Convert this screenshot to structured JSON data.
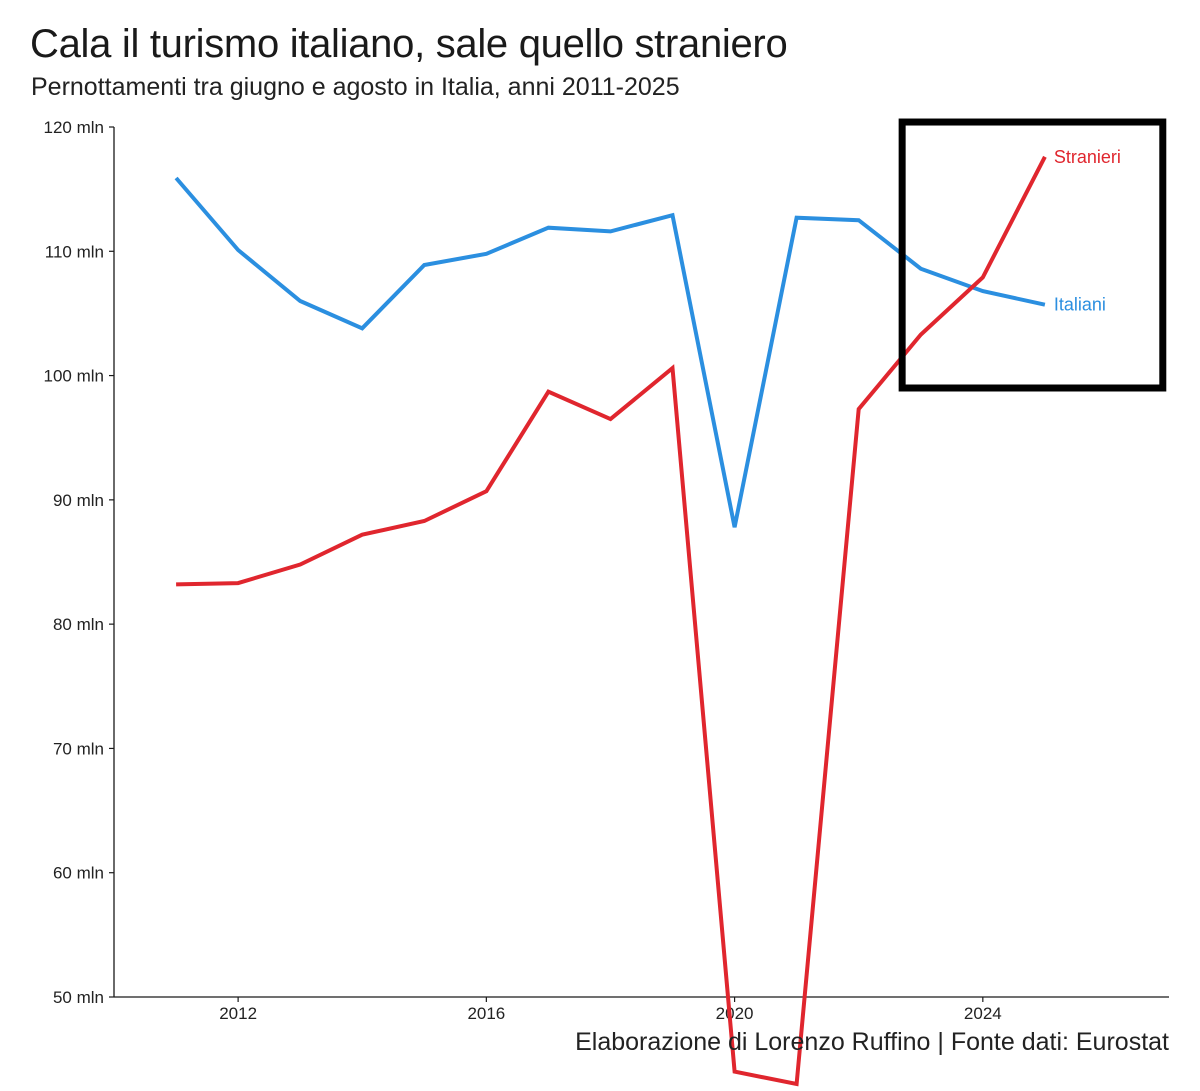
{
  "title": "Cala il turismo italiano, sale quello straniero",
  "subtitle": "Pernottamenti tra giugno e agosto in Italia, anni 2011-2025",
  "caption": "Elaborazione di Lorenzo Ruffino | Fonte dati: Eurostat",
  "chart_data": {
    "type": "line",
    "x": [
      2011,
      2012,
      2013,
      2014,
      2015,
      2016,
      2017,
      2018,
      2019,
      2020,
      2021,
      2022,
      2023,
      2024,
      2025
    ],
    "series": [
      {
        "name": "Italiani",
        "color": "#2b8fe0",
        "values": [
          115.9,
          110.1,
          106.0,
          103.8,
          108.9,
          109.8,
          111.9,
          111.6,
          112.9,
          87.8,
          112.7,
          112.5,
          108.6,
          106.8,
          105.7
        ]
      },
      {
        "name": "Stranieri",
        "color": "#e0262e",
        "values": [
          83.2,
          83.3,
          84.8,
          87.2,
          88.3,
          90.7,
          98.7,
          96.5,
          100.6,
          44.0,
          43.0,
          97.3,
          103.3,
          107.9,
          117.6
        ]
      }
    ],
    "ylim": [
      50,
      120
    ],
    "xlim": [
      2010,
      2027
    ],
    "yticks": [
      50,
      60,
      70,
      80,
      90,
      100,
      110,
      120
    ],
    "ytick_labels": [
      "50 mln",
      "60 mln",
      "70 mln",
      "80 mln",
      "90 mln",
      "100 mln",
      "110 mln",
      "120 mln"
    ],
    "xticks": [
      2012,
      2016,
      2020,
      2024
    ],
    "xtick_labels": [
      "2012",
      "2016",
      "2020",
      "2024"
    ],
    "grid": false,
    "legend": "direct labels at line ends",
    "highlight_box": {
      "x_range": [
        2022.7,
        2026.9
      ],
      "y_range": [
        99.0,
        120.4
      ]
    }
  }
}
